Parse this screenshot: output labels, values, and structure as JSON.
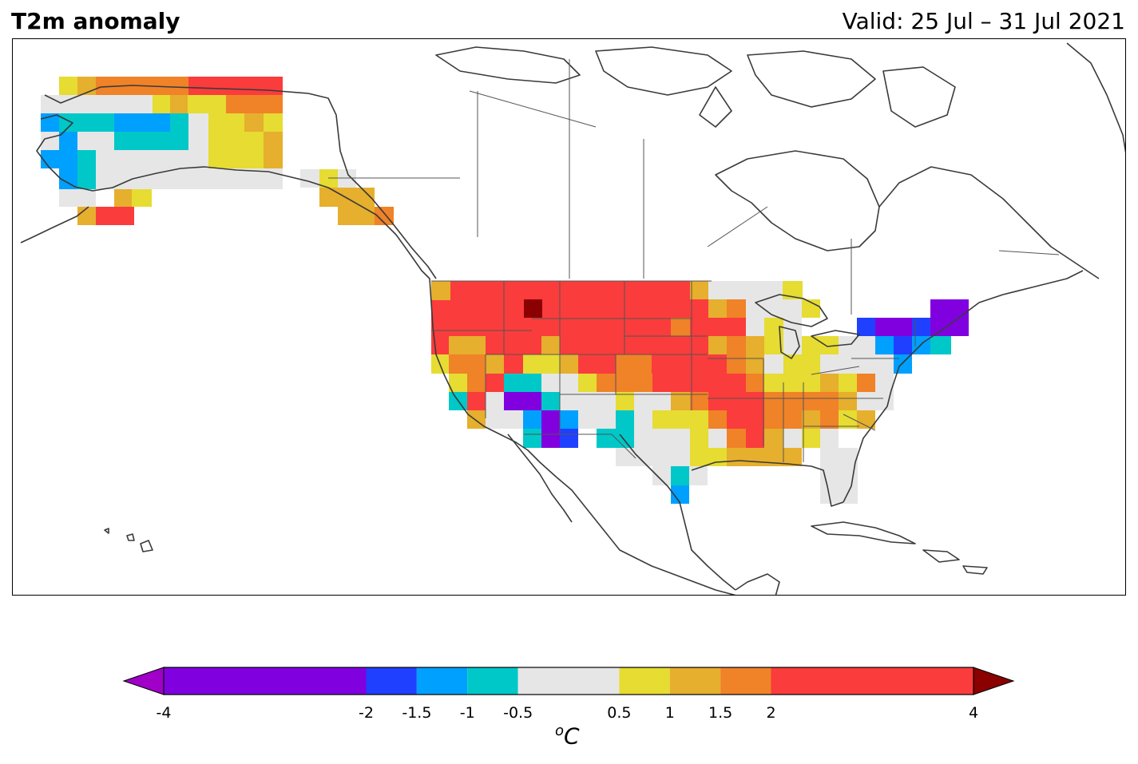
{
  "header": {
    "title": "T2m anomaly",
    "valid": "Valid: 25 Jul – 31 Jul 2021"
  },
  "colorbar": {
    "unit_letter": "C",
    "unit_sup": "o",
    "extend": "both",
    "ticks": [
      "-4",
      "-2",
      "-1.5",
      "-1",
      "-0.5",
      "0.5",
      "1",
      "1.5",
      "2",
      "4"
    ],
    "bounds": [
      -4,
      -2,
      -1.5,
      -1,
      -0.5,
      0.5,
      1,
      1.5,
      2,
      4
    ],
    "colors": [
      "#8000e0",
      "#2040ff",
      "#00a0ff",
      "#00c8c8",
      "#e6e6e6",
      "#e6dc32",
      "#e6af2d",
      "#f08228",
      "#fa3c3c"
    ],
    "under_color": "#a000c8",
    "over_color": "#8b0000"
  },
  "map": {
    "projection": "North America",
    "coastline_color": "#3a3a3a",
    "border_color": "#555555"
  }
}
